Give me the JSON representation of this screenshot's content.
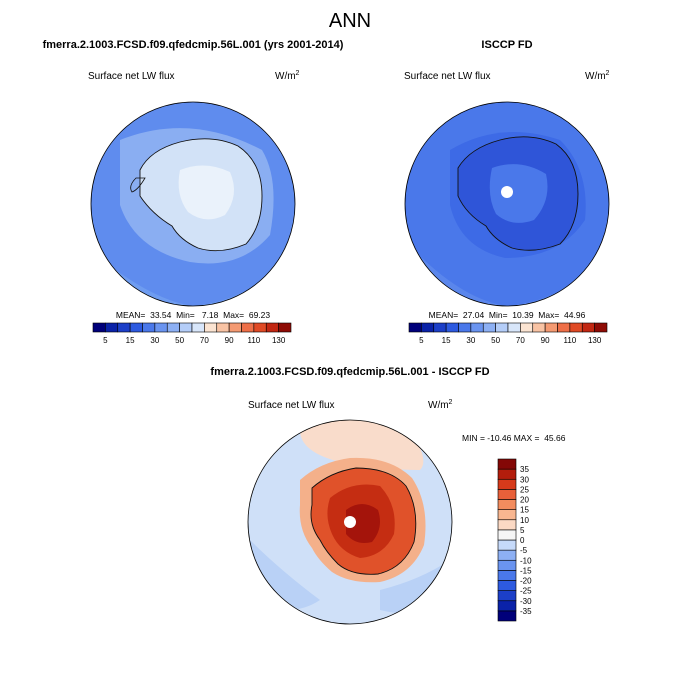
{
  "page_title": "ANN",
  "colors": {
    "ocean_low": "#a9c8f5",
    "ocean_mid": "#6e9cf0",
    "ocean_dark": "#4a78e6",
    "deep_blue": "#2f55d8",
    "ice_pale": "#d8e8f8",
    "ice_lighter": "#eaf2fb",
    "diff_ocean": "#cfe0f8",
    "diff_warm": "#f9dccb",
    "diff_red": "#d9411c",
    "diff_darkred": "#a4140b"
  },
  "chart_data": [
    {
      "type": "heatmap",
      "title": "fmerra.2.1003.FCSD.f09.qfedcmip.56L.001 (yrs 2001-2014)",
      "variable": "Surface net LW flux",
      "units": "W/m",
      "units_sup": "2",
      "stats": {
        "mean": 33.54,
        "min": 7.18,
        "max": 69.23
      },
      "stats_text": "MEAN=  33.54  Min=   7.18  Max=  69.23",
      "colorbar": {
        "levels": [
          5,
          10,
          15,
          20,
          30,
          40,
          50,
          60,
          70,
          80,
          90,
          100,
          110,
          120,
          130
        ],
        "tick_labels": [
          "5",
          "15",
          "30",
          "50",
          "70",
          "90",
          "110",
          "130"
        ],
        "colors": [
          "#00007a",
          "#0a22a8",
          "#1c3fc8",
          "#2d5ae0",
          "#4a78ea",
          "#6a94f0",
          "#8db0f4",
          "#b4cdf8",
          "#d8e6fa",
          "#fbe4d2",
          "#f8c3a4",
          "#f49a72",
          "#ee6f48",
          "#e04a25",
          "#c22712",
          "#8e0b05"
        ]
      }
    },
    {
      "type": "heatmap",
      "title": "ISCCP FD",
      "variable": "Surface net LW flux",
      "units": "W/m",
      "units_sup": "2",
      "stats": {
        "mean": 27.04,
        "min": 10.39,
        "max": 44.96
      },
      "stats_text": "MEAN=  27.04  Min=  10.39  Max=  44.96",
      "colorbar": {
        "levels": [
          5,
          10,
          15,
          20,
          30,
          40,
          50,
          60,
          70,
          80,
          90,
          100,
          110,
          120,
          130
        ],
        "tick_labels": [
          "5",
          "15",
          "30",
          "50",
          "70",
          "90",
          "110",
          "130"
        ],
        "colors": [
          "#00007a",
          "#0a22a8",
          "#1c3fc8",
          "#2d5ae0",
          "#4a78ea",
          "#6a94f0",
          "#8db0f4",
          "#b4cdf8",
          "#d8e6fa",
          "#fbe4d2",
          "#f8c3a4",
          "#f49a72",
          "#ee6f48",
          "#e04a25",
          "#c22712",
          "#8e0b05"
        ]
      }
    },
    {
      "type": "heatmap",
      "title": "fmerra.2.1003.FCSD.f09.qfedcmip.56L.001 - ISCCP FD",
      "variable": "Surface net LW flux",
      "units": "W/m",
      "units_sup": "2",
      "stats": {
        "min": -10.46,
        "max": 45.66
      },
      "stats_text": "MIN = -10.46 MAX =  45.66",
      "colorbar": {
        "levels": [
          -35,
          -30,
          -25,
          -20,
          -15,
          -10,
          -5,
          0,
          5,
          10,
          15,
          20,
          25,
          30,
          35
        ],
        "tick_labels": [
          "-35",
          "-30",
          "-25",
          "-20",
          "-15",
          "-10",
          "-5",
          "0",
          "5",
          "10",
          "15",
          "20",
          "25",
          "30",
          "35"
        ],
        "colors": [
          "#00007a",
          "#0a22a8",
          "#1c3fc8",
          "#2d5ae0",
          "#4a78ea",
          "#6a94f0",
          "#8db0f4",
          "#c6dafa",
          "#f6f6f6",
          "#fbd9c4",
          "#f8b690",
          "#f38c5e",
          "#e8603a",
          "#d63a1b",
          "#b31d0c",
          "#840806"
        ]
      }
    }
  ]
}
